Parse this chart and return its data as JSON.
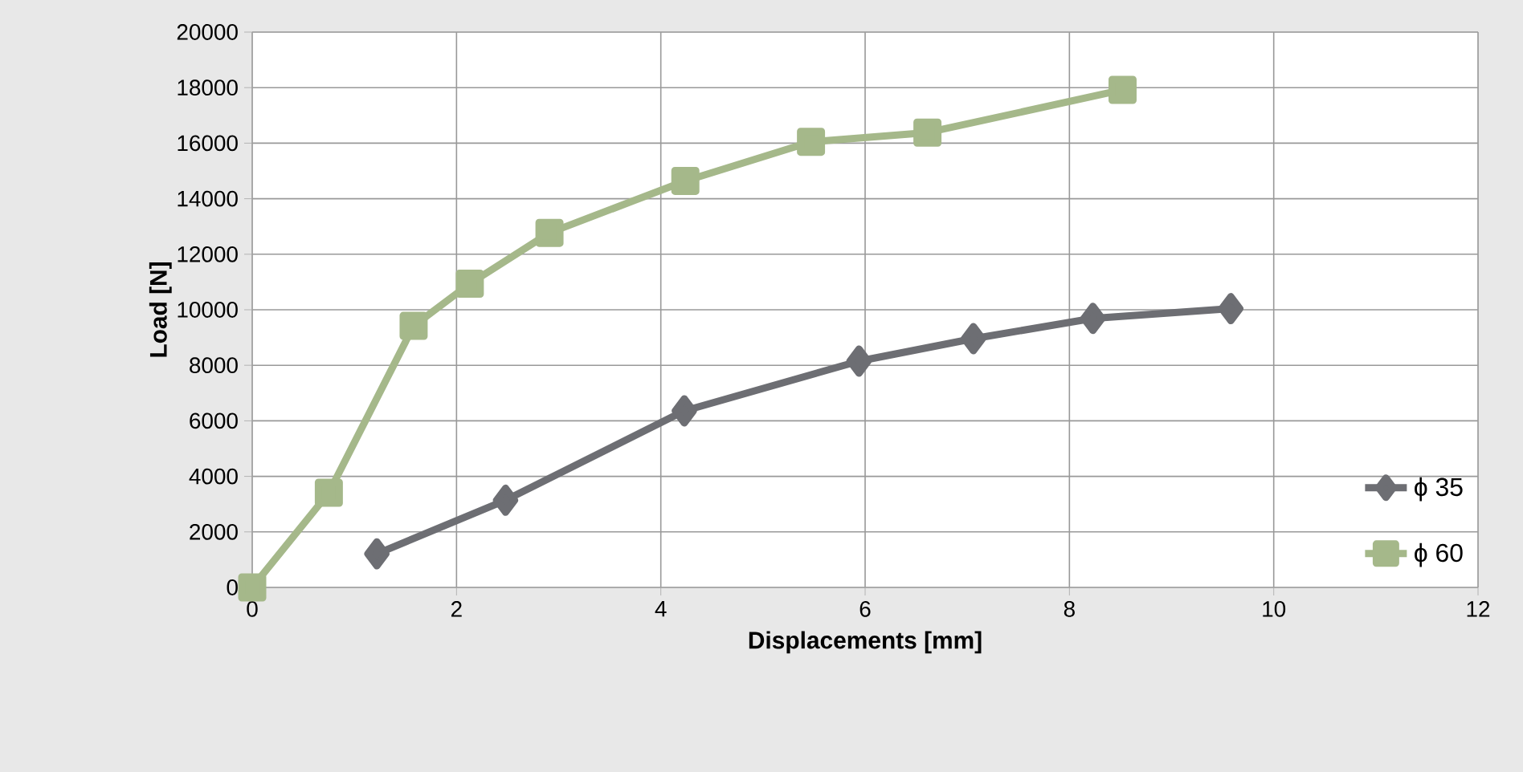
{
  "chart_data": {
    "type": "line",
    "xlabel": "Displacements [mm]",
    "ylabel": "Load [N]",
    "xlim": [
      0,
      12
    ],
    "xticks": [
      0,
      2,
      4,
      6,
      8,
      10,
      12
    ],
    "ylim": [
      0,
      20000
    ],
    "yticks": [
      0,
      2000,
      4000,
      6000,
      8000,
      10000,
      12000,
      14000,
      16000,
      18000,
      20000
    ],
    "grid": true,
    "legend": "right",
    "series": [
      {
        "name": "ϕ 35",
        "color": "#6d6e73",
        "marker": "diamond",
        "x": [
          1.22,
          2.48,
          4.23,
          5.94,
          7.06,
          8.23,
          9.58
        ],
        "values": [
          1210,
          3140,
          6360,
          8150,
          8960,
          9690,
          10040
        ]
      },
      {
        "name": "ϕ 60",
        "color": "#a5b88a",
        "marker": "square",
        "x": [
          0,
          0.75,
          1.58,
          2.13,
          2.91,
          4.24,
          5.47,
          6.61,
          8.52
        ],
        "values": [
          0,
          3410,
          9420,
          10940,
          12770,
          14640,
          16050,
          16380,
          17920
        ]
      }
    ]
  }
}
